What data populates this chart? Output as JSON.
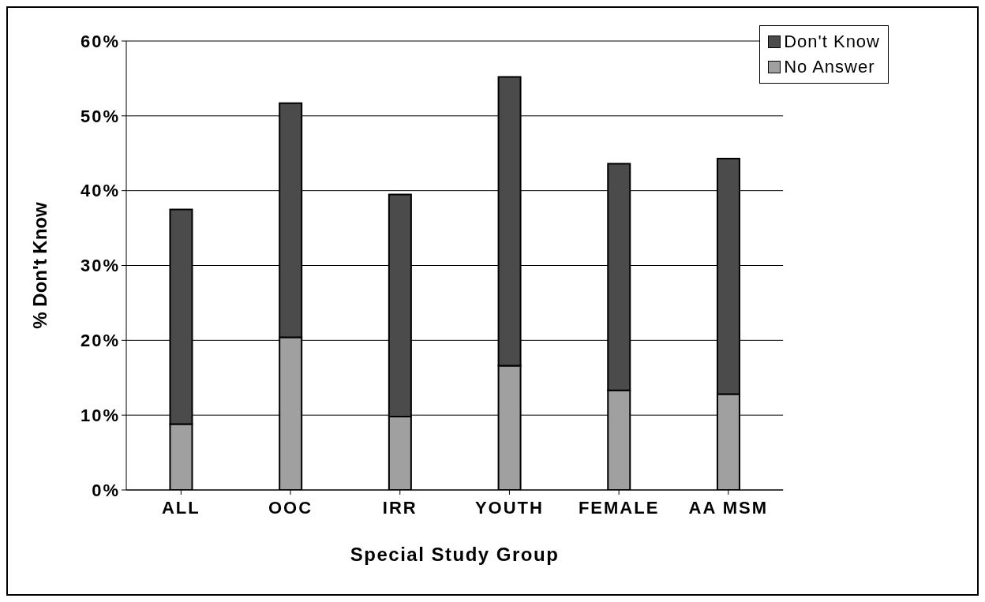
{
  "chart_data": {
    "type": "bar",
    "stacked": true,
    "xlabel": "Special Study Group",
    "ylabel": "% Don't Know",
    "categories": [
      "ALL",
      "OOC",
      "IRR",
      "YOUTH",
      "FEMALE",
      "AA MSM"
    ],
    "series": [
      {
        "name": "No Answer",
        "color": "#a0a0a0",
        "values": [
          8.8,
          20.4,
          9.8,
          16.6,
          13.3,
          12.8
        ]
      },
      {
        "name": "Don't Know",
        "color": "#4b4b4b",
        "values": [
          28.7,
          31.3,
          29.7,
          38.6,
          30.3,
          31.5
        ]
      }
    ],
    "ylim": [
      0,
      60
    ],
    "yticks": [
      {
        "value": 0,
        "label": "0%"
      },
      {
        "value": 10,
        "label": "10%"
      },
      {
        "value": 20,
        "label": "20%"
      },
      {
        "value": 30,
        "label": "30%"
      },
      {
        "value": 40,
        "label": "40%"
      },
      {
        "value": 50,
        "label": "50%"
      },
      {
        "value": 60,
        "label": "60%"
      }
    ],
    "grid": "y",
    "legend": "top right"
  }
}
